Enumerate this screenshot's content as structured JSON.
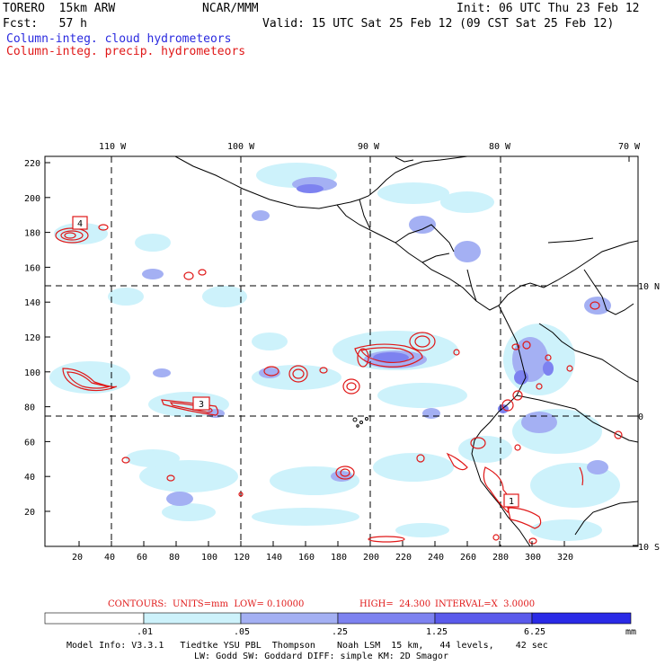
{
  "header": {
    "model": "TORERO  15km ARW",
    "center": "NCAR/MMM",
    "init": "Init: 06 UTC Thu 23 Feb 12",
    "fcst": "Fcst:   57 h",
    "valid": "Valid: 15 UTC Sat 25 Feb 12 (09 CST Sat 25 Feb 12)",
    "legend_cloud": "Column-integ. cloud hydrometeors",
    "legend_precip": "Column-integ. precip. hydrometeors"
  },
  "colors": {
    "cloud": "#2a2adf",
    "precip": "#e01818",
    "scale": [
      "#ffffff",
      "#cdf2fb",
      "#a4b0f3",
      "#7d82f0",
      "#5a5aeb",
      "#2a2ae6"
    ]
  },
  "map": {
    "lon_labels": [
      "110 W",
      "100 W",
      "90 W",
      "80 W",
      "70 W"
    ],
    "lat_labels": [
      "10 N",
      "0",
      "10 S"
    ],
    "y_ticks": [
      "220",
      "200",
      "180",
      "160",
      "140",
      "120",
      "100",
      "80",
      "60",
      "40",
      "20"
    ],
    "x_ticks": [
      "20",
      "40",
      "60",
      "80",
      "100",
      "120",
      "140",
      "160",
      "180",
      "200",
      "220",
      "240",
      "260",
      "280",
      "300",
      "320"
    ],
    "box_labels": [
      "4",
      "3",
      "1"
    ]
  },
  "contours": {
    "units": "CONTOURS:  UNITS=mm  LOW= 0.10000",
    "high": "HIGH=  24.300",
    "interval": "INTERVAL=X  3.0000"
  },
  "colorbar": {
    "labels": [
      ".01",
      ".05",
      ".25",
      "1.25",
      "6.25"
    ],
    "unit": "mm"
  },
  "footer": {
    "line1": "Model Info: V3.3.1   Tiedtke YSU PBL  Thompson    Noah LSM  15 km,   44 levels,    42 sec",
    "line2": "LW: Godd SW: Goddard DIFF: simple KM: 2D Smagor"
  }
}
